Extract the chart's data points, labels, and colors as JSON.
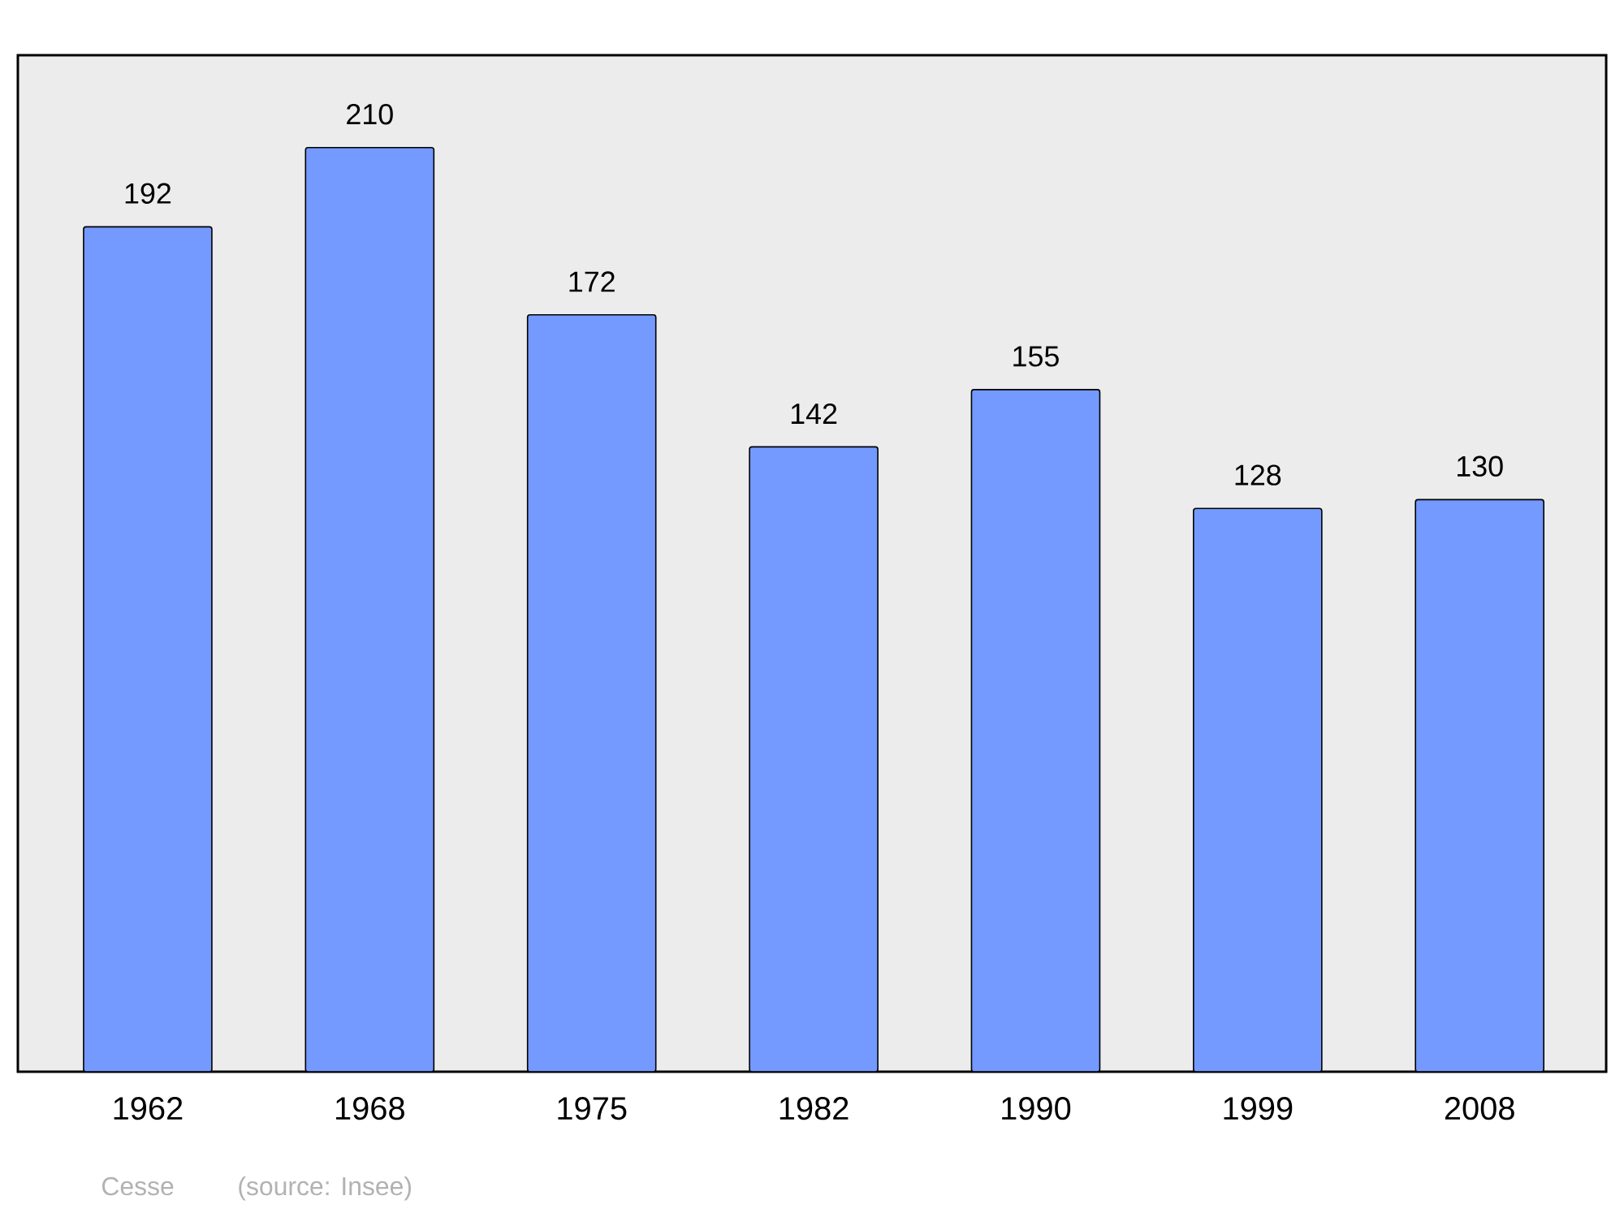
{
  "chart_data": {
    "type": "bar",
    "categories": [
      "1962",
      "1968",
      "1975",
      "1982",
      "1990",
      "1999",
      "2008"
    ],
    "values": [
      192,
      210,
      172,
      142,
      155,
      128,
      130
    ],
    "color": "#7499ff",
    "data_labels": true,
    "ylim": [
      0,
      231
    ],
    "tick_labels": "x",
    "annotations": [
      "Cesse",
      "(source: Insee)"
    ]
  }
}
